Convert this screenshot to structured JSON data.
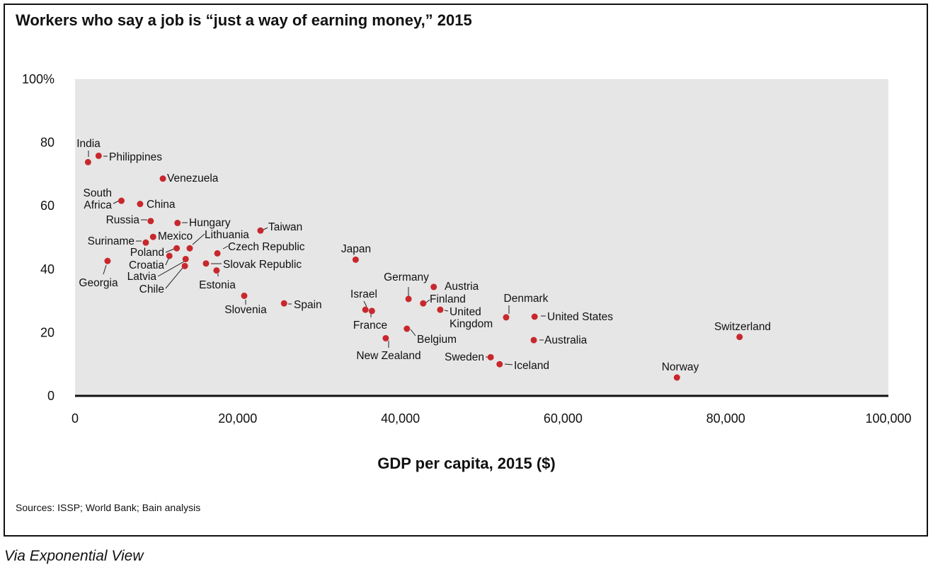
{
  "title": "Workers who say a job is “just a way of earning money,” 2015",
  "sources": "Sources: ISSP; World Bank; Bain analysis",
  "via": "Via Exponential View",
  "chart_data": {
    "type": "scatter",
    "title": "Workers who say a job is “just a way of earning money,” 2015",
    "xlabel": "GDP per capita, 2015 ($)",
    "ylabel": "",
    "xlim": [
      0,
      100000
    ],
    "ylim": [
      0,
      100
    ],
    "x_ticks": [
      "0",
      "20,000",
      "40,000",
      "60,000",
      "80,000",
      "100,000"
    ],
    "x_tick_values": [
      0,
      20000,
      40000,
      60000,
      80000,
      100000
    ],
    "y_ticks": [
      "0",
      "20",
      "40",
      "60",
      "80",
      "100%"
    ],
    "y_tick_values": [
      0,
      20,
      40,
      60,
      80,
      100
    ],
    "grid": false,
    "background": "#e6e6e6",
    "point_color": "#c8282d",
    "points": [
      {
        "name": "India",
        "x": 1600,
        "y": 73.8
      },
      {
        "name": "Philippines",
        "x": 2900,
        "y": 75.8
      },
      {
        "name": "Venezuela",
        "x": 10800,
        "y": 68.6
      },
      {
        "name": "South Africa",
        "x": 5700,
        "y": 61.6
      },
      {
        "name": "China",
        "x": 8000,
        "y": 60.6
      },
      {
        "name": "Russia",
        "x": 9300,
        "y": 55.2
      },
      {
        "name": "Hungary",
        "x": 12600,
        "y": 54.6
      },
      {
        "name": "Taiwan",
        "x": 22800,
        "y": 52.2
      },
      {
        "name": "Mexico",
        "x": 9600,
        "y": 50.2
      },
      {
        "name": "Lithuania",
        "x": 14100,
        "y": 46.6
      },
      {
        "name": "Suriname",
        "x": 8700,
        "y": 48.4
      },
      {
        "name": "Poland",
        "x": 12500,
        "y": 46.6
      },
      {
        "name": "Czech Republic",
        "x": 17500,
        "y": 45.0
      },
      {
        "name": "Croatia",
        "x": 11600,
        "y": 44.2
      },
      {
        "name": "Japan",
        "x": 34500,
        "y": 43.0
      },
      {
        "name": "Georgia",
        "x": 4000,
        "y": 42.6
      },
      {
        "name": "Latvia",
        "x": 13600,
        "y": 43.2
      },
      {
        "name": "Slovak Republic",
        "x": 16100,
        "y": 41.8
      },
      {
        "name": "Chile",
        "x": 13500,
        "y": 41.0
      },
      {
        "name": "Estonia",
        "x": 17400,
        "y": 39.6
      },
      {
        "name": "Germany",
        "x": 41000,
        "y": 30.6
      },
      {
        "name": "Austria",
        "x": 44100,
        "y": 34.4
      },
      {
        "name": "Finland",
        "x": 42800,
        "y": 29.2
      },
      {
        "name": "Slovenia",
        "x": 20800,
        "y": 31.6
      },
      {
        "name": "Spain",
        "x": 25700,
        "y": 29.2
      },
      {
        "name": "Israel",
        "x": 35700,
        "y": 27.2
      },
      {
        "name": "France",
        "x": 36500,
        "y": 26.8
      },
      {
        "name": "United Kingdom",
        "x": 44900,
        "y": 27.2
      },
      {
        "name": "Denmark",
        "x": 53000,
        "y": 24.8
      },
      {
        "name": "United States",
        "x": 56500,
        "y": 25.0
      },
      {
        "name": "Belgium",
        "x": 40800,
        "y": 21.2
      },
      {
        "name": "Switzerland",
        "x": 81700,
        "y": 18.6
      },
      {
        "name": "New Zealand",
        "x": 38200,
        "y": 18.2
      },
      {
        "name": "Australia",
        "x": 56400,
        "y": 17.6
      },
      {
        "name": "Sweden",
        "x": 51100,
        "y": 12.2
      },
      {
        "name": "Iceland",
        "x": 52200,
        "y": 10.0
      },
      {
        "name": "Norway",
        "x": 74000,
        "y": 5.8
      }
    ]
  }
}
